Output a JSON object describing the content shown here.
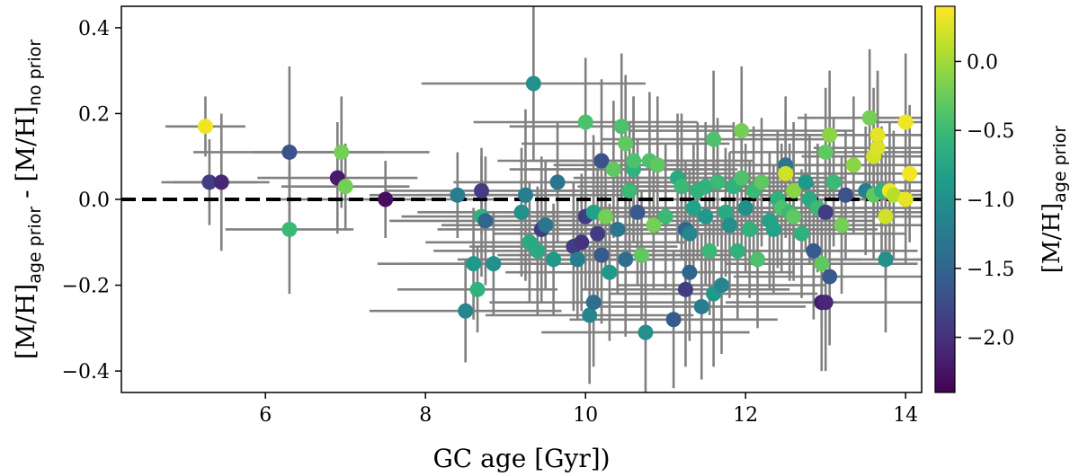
{
  "chart_data": {
    "type": "scatter",
    "title": "",
    "xlabel": "GC age [Gyr])",
    "ylabel": {
      "main_1": "[M/H]",
      "sub_1": "age prior",
      "sep": " - ",
      "main_2": "[M/H]",
      "sub_2": "no prior"
    },
    "xlim": [
      4.2,
      14.2
    ],
    "ylim": [
      -0.45,
      0.45
    ],
    "xticks": [
      6,
      8,
      10,
      12,
      14
    ],
    "xtick_labels": [
      "6",
      "8",
      "10",
      "12",
      "14"
    ],
    "yticks": [
      -0.4,
      -0.2,
      0.0,
      0.2,
      0.4
    ],
    "ytick_labels": [
      "−0.4",
      "−0.2",
      "0.0",
      "0.2",
      "0.4"
    ],
    "reference_line": {
      "y": 0.0,
      "style": "dashed",
      "color": "#000000"
    },
    "errorbar_color": "#808080",
    "colorbar": {
      "label": {
        "main": "[M/H]",
        "sub": "age prior"
      },
      "range": [
        -2.4,
        0.4
      ],
      "colormap": "viridis",
      "ticks": [
        -2.0,
        -1.5,
        -1.0,
        -0.5,
        0.0
      ],
      "tick_labels": [
        "−2.0",
        "−1.5",
        "−1.0",
        "−0.5",
        "0.0"
      ]
    },
    "points": [
      {
        "x": 5.25,
        "y": 0.17,
        "c": 0.35,
        "xerr": 0.5,
        "yerr": 0.07
      },
      {
        "x": 5.3,
        "y": 0.04,
        "c": -1.9,
        "xerr": 0.6,
        "yerr": 0.1
      },
      {
        "x": 5.45,
        "y": 0.04,
        "c": -2.1,
        "xerr": 0.6,
        "yerr": 0.16
      },
      {
        "x": 6.3,
        "y": 0.11,
        "c": -1.7,
        "xerr": 1.2,
        "yerr": 0.2
      },
      {
        "x": 6.3,
        "y": -0.07,
        "c": -0.5,
        "xerr": 0.8,
        "yerr": 0.15
      },
      {
        "x": 6.9,
        "y": 0.05,
        "c": -2.2,
        "xerr": 1.0,
        "yerr": 0.13
      },
      {
        "x": 6.95,
        "y": 0.11,
        "c": -0.2,
        "xerr": 1.1,
        "yerr": 0.13
      },
      {
        "x": 7.0,
        "y": 0.03,
        "c": -0.2,
        "xerr": 0.8,
        "yerr": 0.1
      },
      {
        "x": 7.5,
        "y": 0.0,
        "c": -2.3,
        "xerr": 1.4,
        "yerr": 0.09
      },
      {
        "x": 8.4,
        "y": 0.01,
        "c": -1.2,
        "xerr": 1.1,
        "yerr": 0.1
      },
      {
        "x": 8.5,
        "y": -0.26,
        "c": -1.1,
        "xerr": 1.2,
        "yerr": 0.12
      },
      {
        "x": 8.6,
        "y": -0.15,
        "c": -0.9,
        "xerr": 1.2,
        "yerr": 0.13
      },
      {
        "x": 8.65,
        "y": -0.21,
        "c": -0.6,
        "xerr": 1.0,
        "yerr": 0.1
      },
      {
        "x": 8.7,
        "y": 0.02,
        "c": -1.9,
        "xerr": 1.2,
        "yerr": 0.1
      },
      {
        "x": 8.7,
        "y": -0.04,
        "c": -0.6,
        "xerr": 1.0,
        "yerr": 0.14
      },
      {
        "x": 8.75,
        "y": -0.05,
        "c": -1.5,
        "xerr": 1.2,
        "yerr": 0.15
      },
      {
        "x": 8.85,
        "y": -0.15,
        "c": -1.0,
        "xerr": 1.1,
        "yerr": 0.12
      },
      {
        "x": 9.2,
        "y": -0.03,
        "c": -1.0,
        "xerr": 1.3,
        "yerr": 0.15
      },
      {
        "x": 9.25,
        "y": 0.01,
        "c": -1.2,
        "xerr": 1.3,
        "yerr": 0.2
      },
      {
        "x": 9.3,
        "y": -0.1,
        "c": -0.7,
        "xerr": 1.3,
        "yerr": 0.14
      },
      {
        "x": 9.35,
        "y": 0.27,
        "c": -1.0,
        "xerr": 1.4,
        "yerr": 0.18
      },
      {
        "x": 9.4,
        "y": -0.12,
        "c": -0.7,
        "xerr": 1.3,
        "yerr": 0.15
      },
      {
        "x": 9.45,
        "y": -0.07,
        "c": -1.9,
        "xerr": 1.3,
        "yerr": 0.17
      },
      {
        "x": 9.5,
        "y": -0.06,
        "c": -1.3,
        "xerr": 1.3,
        "yerr": 0.15
      },
      {
        "x": 9.6,
        "y": -0.14,
        "c": -0.9,
        "xerr": 1.2,
        "yerr": 0.13
      },
      {
        "x": 9.65,
        "y": 0.04,
        "c": -1.3,
        "xerr": 1.3,
        "yerr": 0.14
      },
      {
        "x": 9.85,
        "y": -0.11,
        "c": -1.9,
        "xerr": 1.3,
        "yerr": 0.15
      },
      {
        "x": 9.9,
        "y": -0.14,
        "c": -1.2,
        "xerr": 1.3,
        "yerr": 0.14
      },
      {
        "x": 9.95,
        "y": -0.1,
        "c": -2.0,
        "xerr": 1.3,
        "yerr": 0.16
      },
      {
        "x": 10.0,
        "y": -0.04,
        "c": -1.9,
        "xerr": 1.3,
        "yerr": 0.17
      },
      {
        "x": 10.0,
        "y": 0.18,
        "c": -0.4,
        "xerr": 1.4,
        "yerr": 0.15
      },
      {
        "x": 10.05,
        "y": -0.27,
        "c": -1.1,
        "xerr": 1.3,
        "yerr": 0.16
      },
      {
        "x": 10.1,
        "y": -0.03,
        "c": -0.8,
        "xerr": 1.3,
        "yerr": 0.18
      },
      {
        "x": 10.1,
        "y": -0.24,
        "c": -1.4,
        "xerr": 1.3,
        "yerr": 0.15
      },
      {
        "x": 10.15,
        "y": -0.08,
        "c": -1.9,
        "xerr": 1.3,
        "yerr": 0.17
      },
      {
        "x": 10.2,
        "y": 0.09,
        "c": -1.7,
        "xerr": 1.3,
        "yerr": 0.19
      },
      {
        "x": 10.2,
        "y": -0.13,
        "c": -1.6,
        "xerr": 1.3,
        "yerr": 0.16
      },
      {
        "x": 10.25,
        "y": -0.04,
        "c": -0.2,
        "xerr": 1.3,
        "yerr": 0.14
      },
      {
        "x": 10.3,
        "y": -0.17,
        "c": -0.9,
        "xerr": 1.3,
        "yerr": 0.16
      },
      {
        "x": 10.35,
        "y": 0.07,
        "c": -0.3,
        "xerr": 1.3,
        "yerr": 0.16
      },
      {
        "x": 10.4,
        "y": -0.07,
        "c": -1.3,
        "xerr": 1.3,
        "yerr": 0.15
      },
      {
        "x": 10.45,
        "y": 0.17,
        "c": -0.4,
        "xerr": 1.4,
        "yerr": 0.17
      },
      {
        "x": 10.5,
        "y": 0.13,
        "c": -0.3,
        "xerr": 1.3,
        "yerr": 0.16
      },
      {
        "x": 10.5,
        "y": -0.14,
        "c": -1.4,
        "xerr": 1.3,
        "yerr": 0.18
      },
      {
        "x": 10.55,
        "y": 0.02,
        "c": -0.5,
        "xerr": 1.3,
        "yerr": 0.16
      },
      {
        "x": 10.6,
        "y": 0.07,
        "c": -0.6,
        "xerr": 1.3,
        "yerr": 0.17
      },
      {
        "x": 10.6,
        "y": 0.09,
        "c": -0.4,
        "xerr": 1.3,
        "yerr": 0.15
      },
      {
        "x": 10.65,
        "y": -0.03,
        "c": -1.6,
        "xerr": 1.3,
        "yerr": 0.17
      },
      {
        "x": 10.7,
        "y": -0.13,
        "c": -0.3,
        "xerr": 1.3,
        "yerr": 0.15
      },
      {
        "x": 10.75,
        "y": -0.31,
        "c": -1.0,
        "xerr": 1.3,
        "yerr": 0.17
      },
      {
        "x": 10.8,
        "y": 0.09,
        "c": -0.4,
        "xerr": 1.3,
        "yerr": 0.16
      },
      {
        "x": 10.85,
        "y": -0.06,
        "c": -0.2,
        "xerr": 1.3,
        "yerr": 0.15
      },
      {
        "x": 10.9,
        "y": 0.08,
        "c": -0.3,
        "xerr": 1.3,
        "yerr": 0.16
      },
      {
        "x": 11.0,
        "y": -0.04,
        "c": -0.5,
        "xerr": 1.3,
        "yerr": 0.17
      },
      {
        "x": 11.1,
        "y": -0.28,
        "c": -1.6,
        "xerr": 1.3,
        "yerr": 0.16
      },
      {
        "x": 11.15,
        "y": 0.05,
        "c": -0.7,
        "xerr": 1.3,
        "yerr": 0.15
      },
      {
        "x": 11.2,
        "y": 0.03,
        "c": -0.5,
        "xerr": 1.3,
        "yerr": 0.17
      },
      {
        "x": 11.25,
        "y": -0.07,
        "c": -1.5,
        "xerr": 1.3,
        "yerr": 0.16
      },
      {
        "x": 11.25,
        "y": -0.21,
        "c": -1.9,
        "xerr": 1.3,
        "yerr": 0.18
      },
      {
        "x": 11.3,
        "y": -0.08,
        "c": -1.1,
        "xerr": 1.3,
        "yerr": 0.15
      },
      {
        "x": 11.3,
        "y": -0.17,
        "c": -1.5,
        "xerr": 1.3,
        "yerr": 0.16
      },
      {
        "x": 11.35,
        "y": -0.02,
        "c": -0.8,
        "xerr": 1.3,
        "yerr": 0.15
      },
      {
        "x": 11.4,
        "y": 0.02,
        "c": -0.6,
        "xerr": 1.3,
        "yerr": 0.16
      },
      {
        "x": 11.45,
        "y": -0.25,
        "c": -1.2,
        "xerr": 1.3,
        "yerr": 0.17
      },
      {
        "x": 11.5,
        "y": 0.03,
        "c": -0.6,
        "xerr": 1.3,
        "yerr": 0.15
      },
      {
        "x": 11.5,
        "y": -0.04,
        "c": -0.9,
        "xerr": 1.3,
        "yerr": 0.16
      },
      {
        "x": 11.55,
        "y": -0.12,
        "c": -0.5,
        "xerr": 1.3,
        "yerr": 0.15
      },
      {
        "x": 11.6,
        "y": 0.14,
        "c": -0.4,
        "xerr": 1.4,
        "yerr": 0.16
      },
      {
        "x": 11.6,
        "y": -0.22,
        "c": -0.9,
        "xerr": 1.3,
        "yerr": 0.17
      },
      {
        "x": 11.65,
        "y": 0.04,
        "c": -0.5,
        "xerr": 1.3,
        "yerr": 0.15
      },
      {
        "x": 11.7,
        "y": -0.2,
        "c": -1.1,
        "xerr": 1.3,
        "yerr": 0.16
      },
      {
        "x": 11.75,
        "y": -0.03,
        "c": -0.7,
        "xerr": 1.3,
        "yerr": 0.15
      },
      {
        "x": 11.8,
        "y": -0.06,
        "c": -1.0,
        "xerr": 1.3,
        "yerr": 0.17
      },
      {
        "x": 11.85,
        "y": 0.03,
        "c": -0.6,
        "xerr": 1.3,
        "yerr": 0.15
      },
      {
        "x": 11.9,
        "y": -0.12,
        "c": -0.6,
        "xerr": 1.3,
        "yerr": 0.16
      },
      {
        "x": 11.95,
        "y": 0.16,
        "c": -0.2,
        "xerr": 1.4,
        "yerr": 0.15
      },
      {
        "x": 11.95,
        "y": 0.05,
        "c": -0.4,
        "xerr": 1.3,
        "yerr": 0.16
      },
      {
        "x": 12.0,
        "y": -0.02,
        "c": -1.0,
        "xerr": 1.3,
        "yerr": 0.15
      },
      {
        "x": 12.05,
        "y": -0.07,
        "c": -0.6,
        "xerr": 1.3,
        "yerr": 0.16
      },
      {
        "x": 12.1,
        "y": 0.02,
        "c": -0.5,
        "xerr": 1.3,
        "yerr": 0.15
      },
      {
        "x": 12.15,
        "y": -0.14,
        "c": -0.4,
        "xerr": 1.3,
        "yerr": 0.16
      },
      {
        "x": 12.2,
        "y": 0.04,
        "c": -0.3,
        "xerr": 1.3,
        "yerr": 0.15
      },
      {
        "x": 12.3,
        "y": -0.05,
        "c": -0.8,
        "xerr": 1.3,
        "yerr": 0.16
      },
      {
        "x": 12.35,
        "y": -0.07,
        "c": -0.8,
        "xerr": 1.3,
        "yerr": 0.15
      },
      {
        "x": 12.4,
        "y": 0.0,
        "c": -0.6,
        "xerr": 1.3,
        "yerr": 0.16
      },
      {
        "x": 12.45,
        "y": -0.02,
        "c": -0.4,
        "xerr": 1.3,
        "yerr": 0.15
      },
      {
        "x": 12.5,
        "y": 0.08,
        "c": -1.3,
        "xerr": 1.3,
        "yerr": 0.16
      },
      {
        "x": 12.5,
        "y": 0.06,
        "c": 0.2,
        "xerr": 1.3,
        "yerr": 0.15
      },
      {
        "x": 12.55,
        "y": -0.03,
        "c": -0.5,
        "xerr": 1.3,
        "yerr": 0.16
      },
      {
        "x": 12.6,
        "y": -0.04,
        "c": -0.3,
        "xerr": 1.3,
        "yerr": 0.15
      },
      {
        "x": 12.6,
        "y": 0.02,
        "c": -0.1,
        "xerr": 1.3,
        "yerr": 0.16
      },
      {
        "x": 12.7,
        "y": -0.08,
        "c": -0.6,
        "xerr": 1.3,
        "yerr": 0.15
      },
      {
        "x": 12.75,
        "y": 0.04,
        "c": -0.9,
        "xerr": 1.3,
        "yerr": 0.16
      },
      {
        "x": 12.8,
        "y": 0.0,
        "c": -0.7,
        "xerr": 1.3,
        "yerr": 0.15
      },
      {
        "x": 12.85,
        "y": -0.12,
        "c": -1.6,
        "xerr": 1.3,
        "yerr": 0.16
      },
      {
        "x": 12.9,
        "y": -0.02,
        "c": -0.5,
        "xerr": 1.3,
        "yerr": 0.15
      },
      {
        "x": 12.95,
        "y": -0.24,
        "c": -2.2,
        "xerr": 1.2,
        "yerr": 0.16
      },
      {
        "x": 12.95,
        "y": -0.15,
        "c": -0.3,
        "xerr": 1.2,
        "yerr": 0.15
      },
      {
        "x": 13.0,
        "y": -0.24,
        "c": -2.1,
        "xerr": 1.2,
        "yerr": 0.16
      },
      {
        "x": 13.0,
        "y": 0.11,
        "c": -0.3,
        "xerr": 1.2,
        "yerr": 0.15
      },
      {
        "x": 13.0,
        "y": -0.03,
        "c": -1.9,
        "xerr": 1.2,
        "yerr": 0.16
      },
      {
        "x": 13.05,
        "y": 0.15,
        "c": -0.1,
        "xerr": 1.2,
        "yerr": 0.15
      },
      {
        "x": 13.05,
        "y": -0.18,
        "c": -1.6,
        "xerr": 1.2,
        "yerr": 0.16
      },
      {
        "x": 13.1,
        "y": 0.04,
        "c": -0.5,
        "xerr": 1.2,
        "yerr": 0.15
      },
      {
        "x": 13.2,
        "y": -0.06,
        "c": -0.2,
        "xerr": 1.2,
        "yerr": 0.16
      },
      {
        "x": 13.25,
        "y": 0.01,
        "c": -1.7,
        "xerr": 1.1,
        "yerr": 0.15
      },
      {
        "x": 13.35,
        "y": 0.08,
        "c": -0.1,
        "xerr": 1.1,
        "yerr": 0.16
      },
      {
        "x": 13.5,
        "y": 0.02,
        "c": -1.2,
        "xerr": 1.0,
        "yerr": 0.15
      },
      {
        "x": 13.55,
        "y": 0.19,
        "c": -0.2,
        "xerr": 0.9,
        "yerr": 0.16
      },
      {
        "x": 13.6,
        "y": 0.01,
        "c": -0.3,
        "xerr": 0.9,
        "yerr": 0.15
      },
      {
        "x": 13.6,
        "y": 0.1,
        "c": 0.2,
        "xerr": 0.9,
        "yerr": 0.16
      },
      {
        "x": 13.65,
        "y": 0.15,
        "c": 0.3,
        "xerr": 0.8,
        "yerr": 0.15
      },
      {
        "x": 13.65,
        "y": 0.12,
        "c": 0.25,
        "xerr": 0.8,
        "yerr": 0.16
      },
      {
        "x": 13.7,
        "y": 0.02,
        "c": -0.6,
        "xerr": 0.8,
        "yerr": 0.15
      },
      {
        "x": 13.75,
        "y": -0.14,
        "c": -1.0,
        "xerr": 0.7,
        "yerr": 0.17
      },
      {
        "x": 13.75,
        "y": -0.04,
        "c": 0.2,
        "xerr": 0.7,
        "yerr": 0.15
      },
      {
        "x": 13.8,
        "y": 0.02,
        "c": 0.35,
        "xerr": 0.6,
        "yerr": 0.16
      },
      {
        "x": 13.85,
        "y": 0.01,
        "c": 0.1,
        "xerr": 0.6,
        "yerr": 0.15
      },
      {
        "x": 14.0,
        "y": 0.18,
        "c": 0.35,
        "xerr": 0.5,
        "yerr": 0.16
      },
      {
        "x": 14.0,
        "y": 0.0,
        "c": 0.3,
        "xerr": 0.5,
        "yerr": 0.15
      },
      {
        "x": 14.05,
        "y": 0.06,
        "c": 0.35,
        "xerr": 0.5,
        "yerr": 0.16
      }
    ]
  }
}
